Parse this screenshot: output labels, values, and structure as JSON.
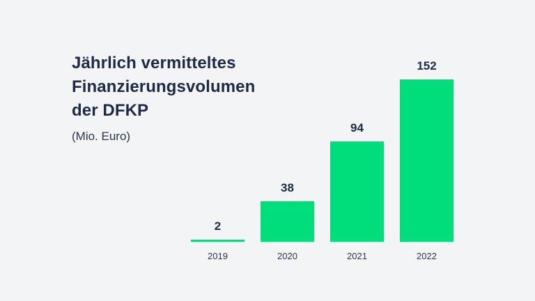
{
  "title_lines": [
    "Jährlich vermitteltes",
    "Finanzierungsvolumen",
    "der DFKP"
  ],
  "subtitle": "(Mio. Euro)",
  "colors": {
    "background": "#f3f4f6",
    "bar": "#00de7b",
    "text": "#1e2a45"
  },
  "chart_data": {
    "type": "bar",
    "title": "Jährlich vermitteltes Finanzierungsvolumen der DFKP",
    "subtitle": "(Mio. Euro)",
    "categories": [
      "2019",
      "2020",
      "2021",
      "2022"
    ],
    "values": [
      2,
      38,
      94,
      152
    ],
    "data_labels": [
      "2",
      "38",
      "94",
      "152"
    ],
    "xlabel": "",
    "ylabel": "",
    "ylim": [
      0,
      152
    ],
    "grid": false,
    "legend": "none"
  }
}
